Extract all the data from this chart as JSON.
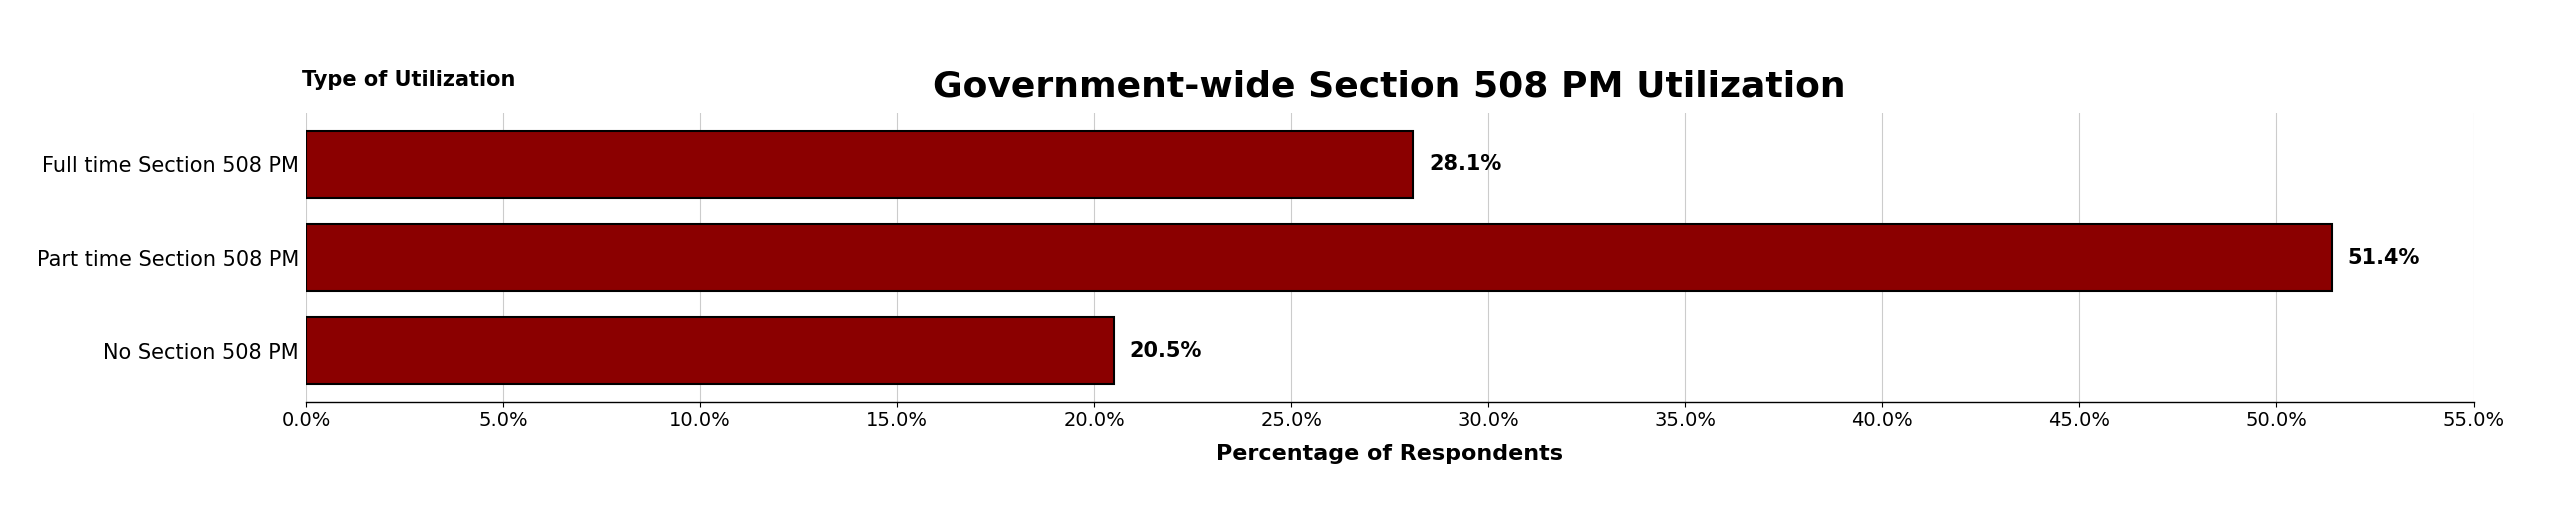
{
  "title": "Government-wide Section 508 PM Utilization",
  "categories": [
    "Full time Section 508 PM",
    "Part time Section 508 PM",
    "No Section 508 PM"
  ],
  "values": [
    28.1,
    51.4,
    20.5
  ],
  "bar_color": "#8B0000",
  "bar_edgecolor": "#000000",
  "label_texts": [
    "28.1%",
    "51.4%",
    "20.5%"
  ],
  "xlabel": "Percentage of Respondents",
  "ylabel_header": "Type of Utilization",
  "xlim": [
    0,
    55
  ],
  "xticks": [
    0,
    5,
    10,
    15,
    20,
    25,
    30,
    35,
    40,
    45,
    50,
    55
  ],
  "title_fontsize": 26,
  "label_fontsize": 15,
  "tick_fontsize": 14,
  "xlabel_fontsize": 16,
  "ylabel_header_fontsize": 15,
  "value_label_fontsize": 15,
  "bar_height": 0.72,
  "background_color": "#ffffff",
  "grid_color": "#cccccc"
}
